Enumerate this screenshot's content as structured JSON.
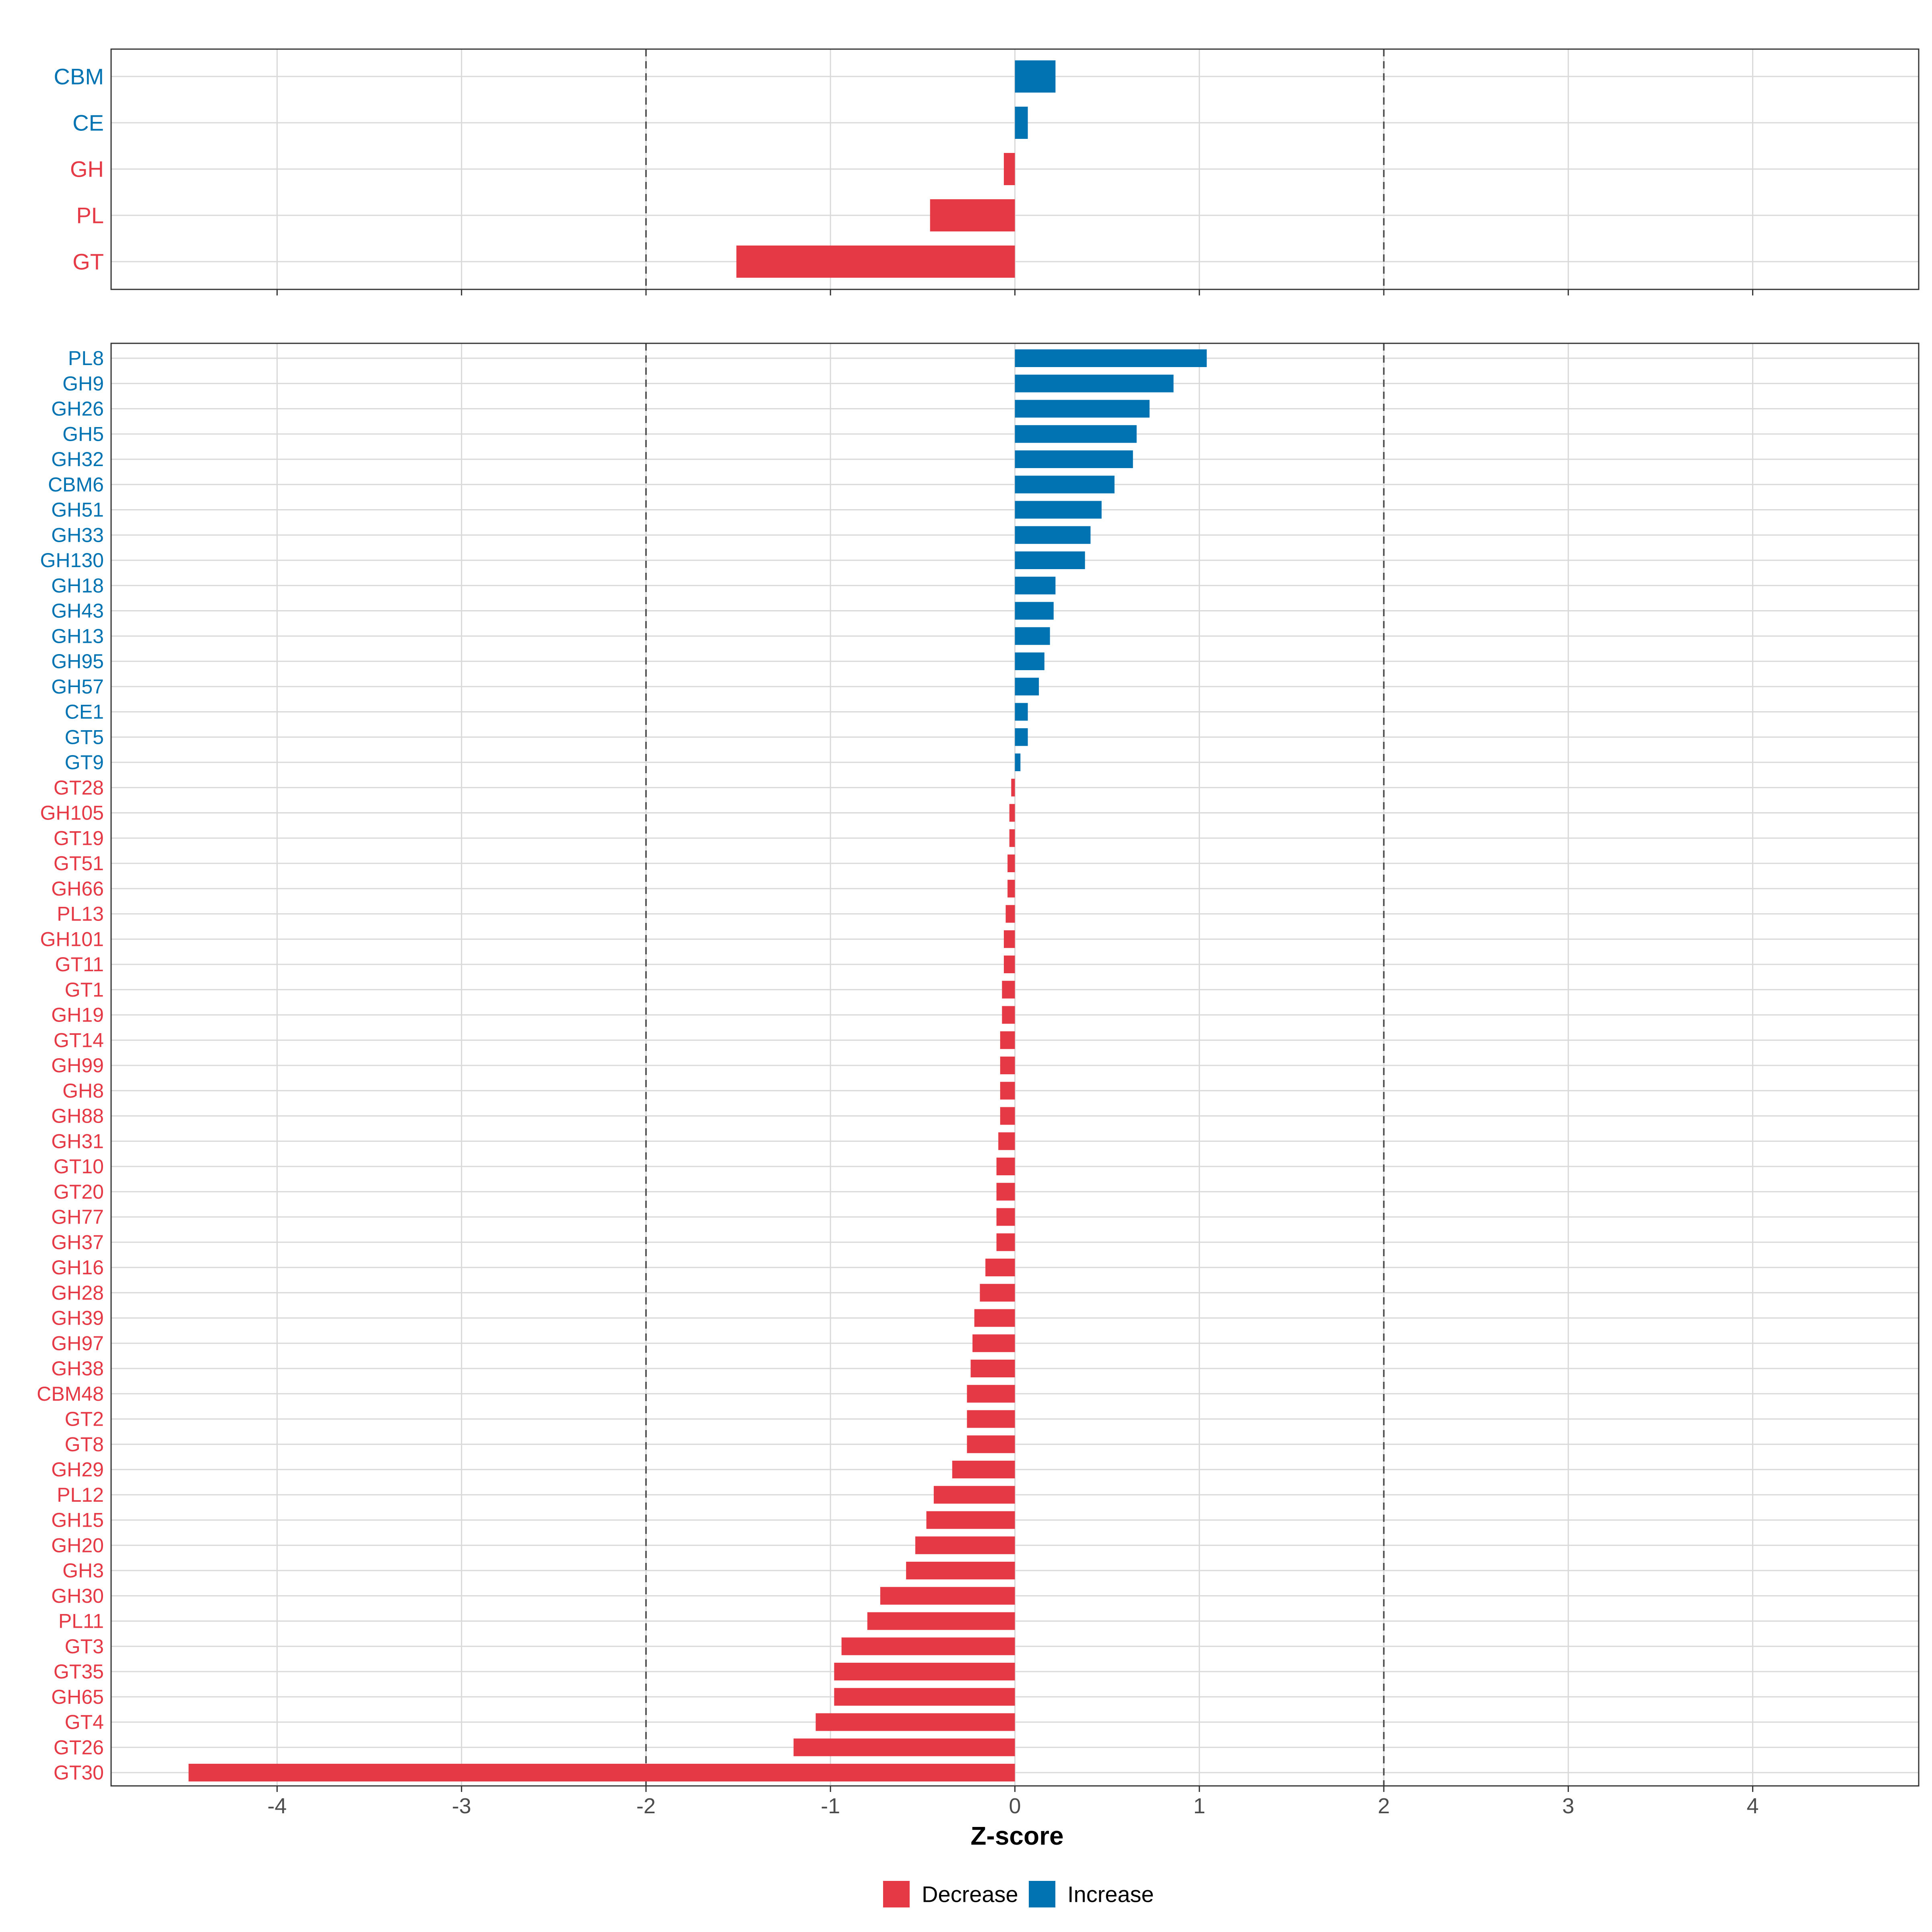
{
  "colors": {
    "decrease": "#E63946",
    "increase": "#0173B2",
    "panel_border": "#333333",
    "grid": "#D9D9D9",
    "threshold": "#555555",
    "tick_text": "#4D4D4D"
  },
  "chart_data": [
    {
      "type": "bar",
      "orientation": "horizontal",
      "panel": "top",
      "categories": [
        "CBM",
        "CE",
        "GH",
        "PL",
        "GT"
      ],
      "values": [
        0.22,
        0.07,
        -0.06,
        -0.46,
        -1.51
      ],
      "xlim": [
        -4.9,
        4.9
      ],
      "xticks": [
        -4,
        -3,
        -2,
        -1,
        0,
        1,
        2,
        3,
        4
      ],
      "thresholds": [
        -2,
        2
      ],
      "grid": true
    },
    {
      "type": "bar",
      "orientation": "horizontal",
      "panel": "bottom",
      "categories": [
        "PL8",
        "GH9",
        "GH26",
        "GH5",
        "GH32",
        "CBM6",
        "GH51",
        "GH33",
        "GH130",
        "GH18",
        "GH43",
        "GH13",
        "GH95",
        "GH57",
        "CE1",
        "GT5",
        "GT9",
        "GT28",
        "GH105",
        "GT19",
        "GT51",
        "GH66",
        "PL13",
        "GH101",
        "GT11",
        "GT1",
        "GH19",
        "GT14",
        "GH99",
        "GH8",
        "GH88",
        "GH31",
        "GT10",
        "GT20",
        "GH77",
        "GH37",
        "GH16",
        "GH28",
        "GH39",
        "GH97",
        "GH38",
        "CBM48",
        "GT2",
        "GT8",
        "GH29",
        "PL12",
        "GH15",
        "GH20",
        "GH3",
        "GH30",
        "PL11",
        "GT3",
        "GT35",
        "GH65",
        "GT4",
        "GT26",
        "GT30"
      ],
      "values": [
        1.04,
        0.86,
        0.73,
        0.66,
        0.64,
        0.54,
        0.47,
        0.41,
        0.38,
        0.22,
        0.21,
        0.19,
        0.16,
        0.13,
        0.07,
        0.07,
        0.03,
        -0.02,
        -0.03,
        -0.03,
        -0.04,
        -0.04,
        -0.05,
        -0.06,
        -0.06,
        -0.07,
        -0.07,
        -0.08,
        -0.08,
        -0.08,
        -0.08,
        -0.09,
        -0.1,
        -0.1,
        -0.1,
        -0.1,
        -0.16,
        -0.19,
        -0.22,
        -0.23,
        -0.24,
        -0.26,
        -0.26,
        -0.26,
        -0.34,
        -0.44,
        -0.48,
        -0.54,
        -0.59,
        -0.73,
        -0.8,
        -0.94,
        -0.98,
        -0.98,
        -1.08,
        -1.2,
        -4.48
      ],
      "xlim": [
        -4.9,
        4.9
      ],
      "xticks": [
        -4,
        -3,
        -2,
        -1,
        0,
        1,
        2,
        3,
        4
      ],
      "xtick_labels": [
        "-4",
        "-3",
        "-2",
        "-1",
        "0",
        "1",
        "2",
        "3",
        "4"
      ],
      "thresholds": [
        -2,
        2
      ],
      "xlabel": "Z-score",
      "grid": true
    }
  ],
  "legend": {
    "placement": "bottom",
    "items": [
      {
        "label": "Decrease",
        "color_key": "decrease"
      },
      {
        "label": "Increase",
        "color_key": "increase"
      }
    ]
  }
}
